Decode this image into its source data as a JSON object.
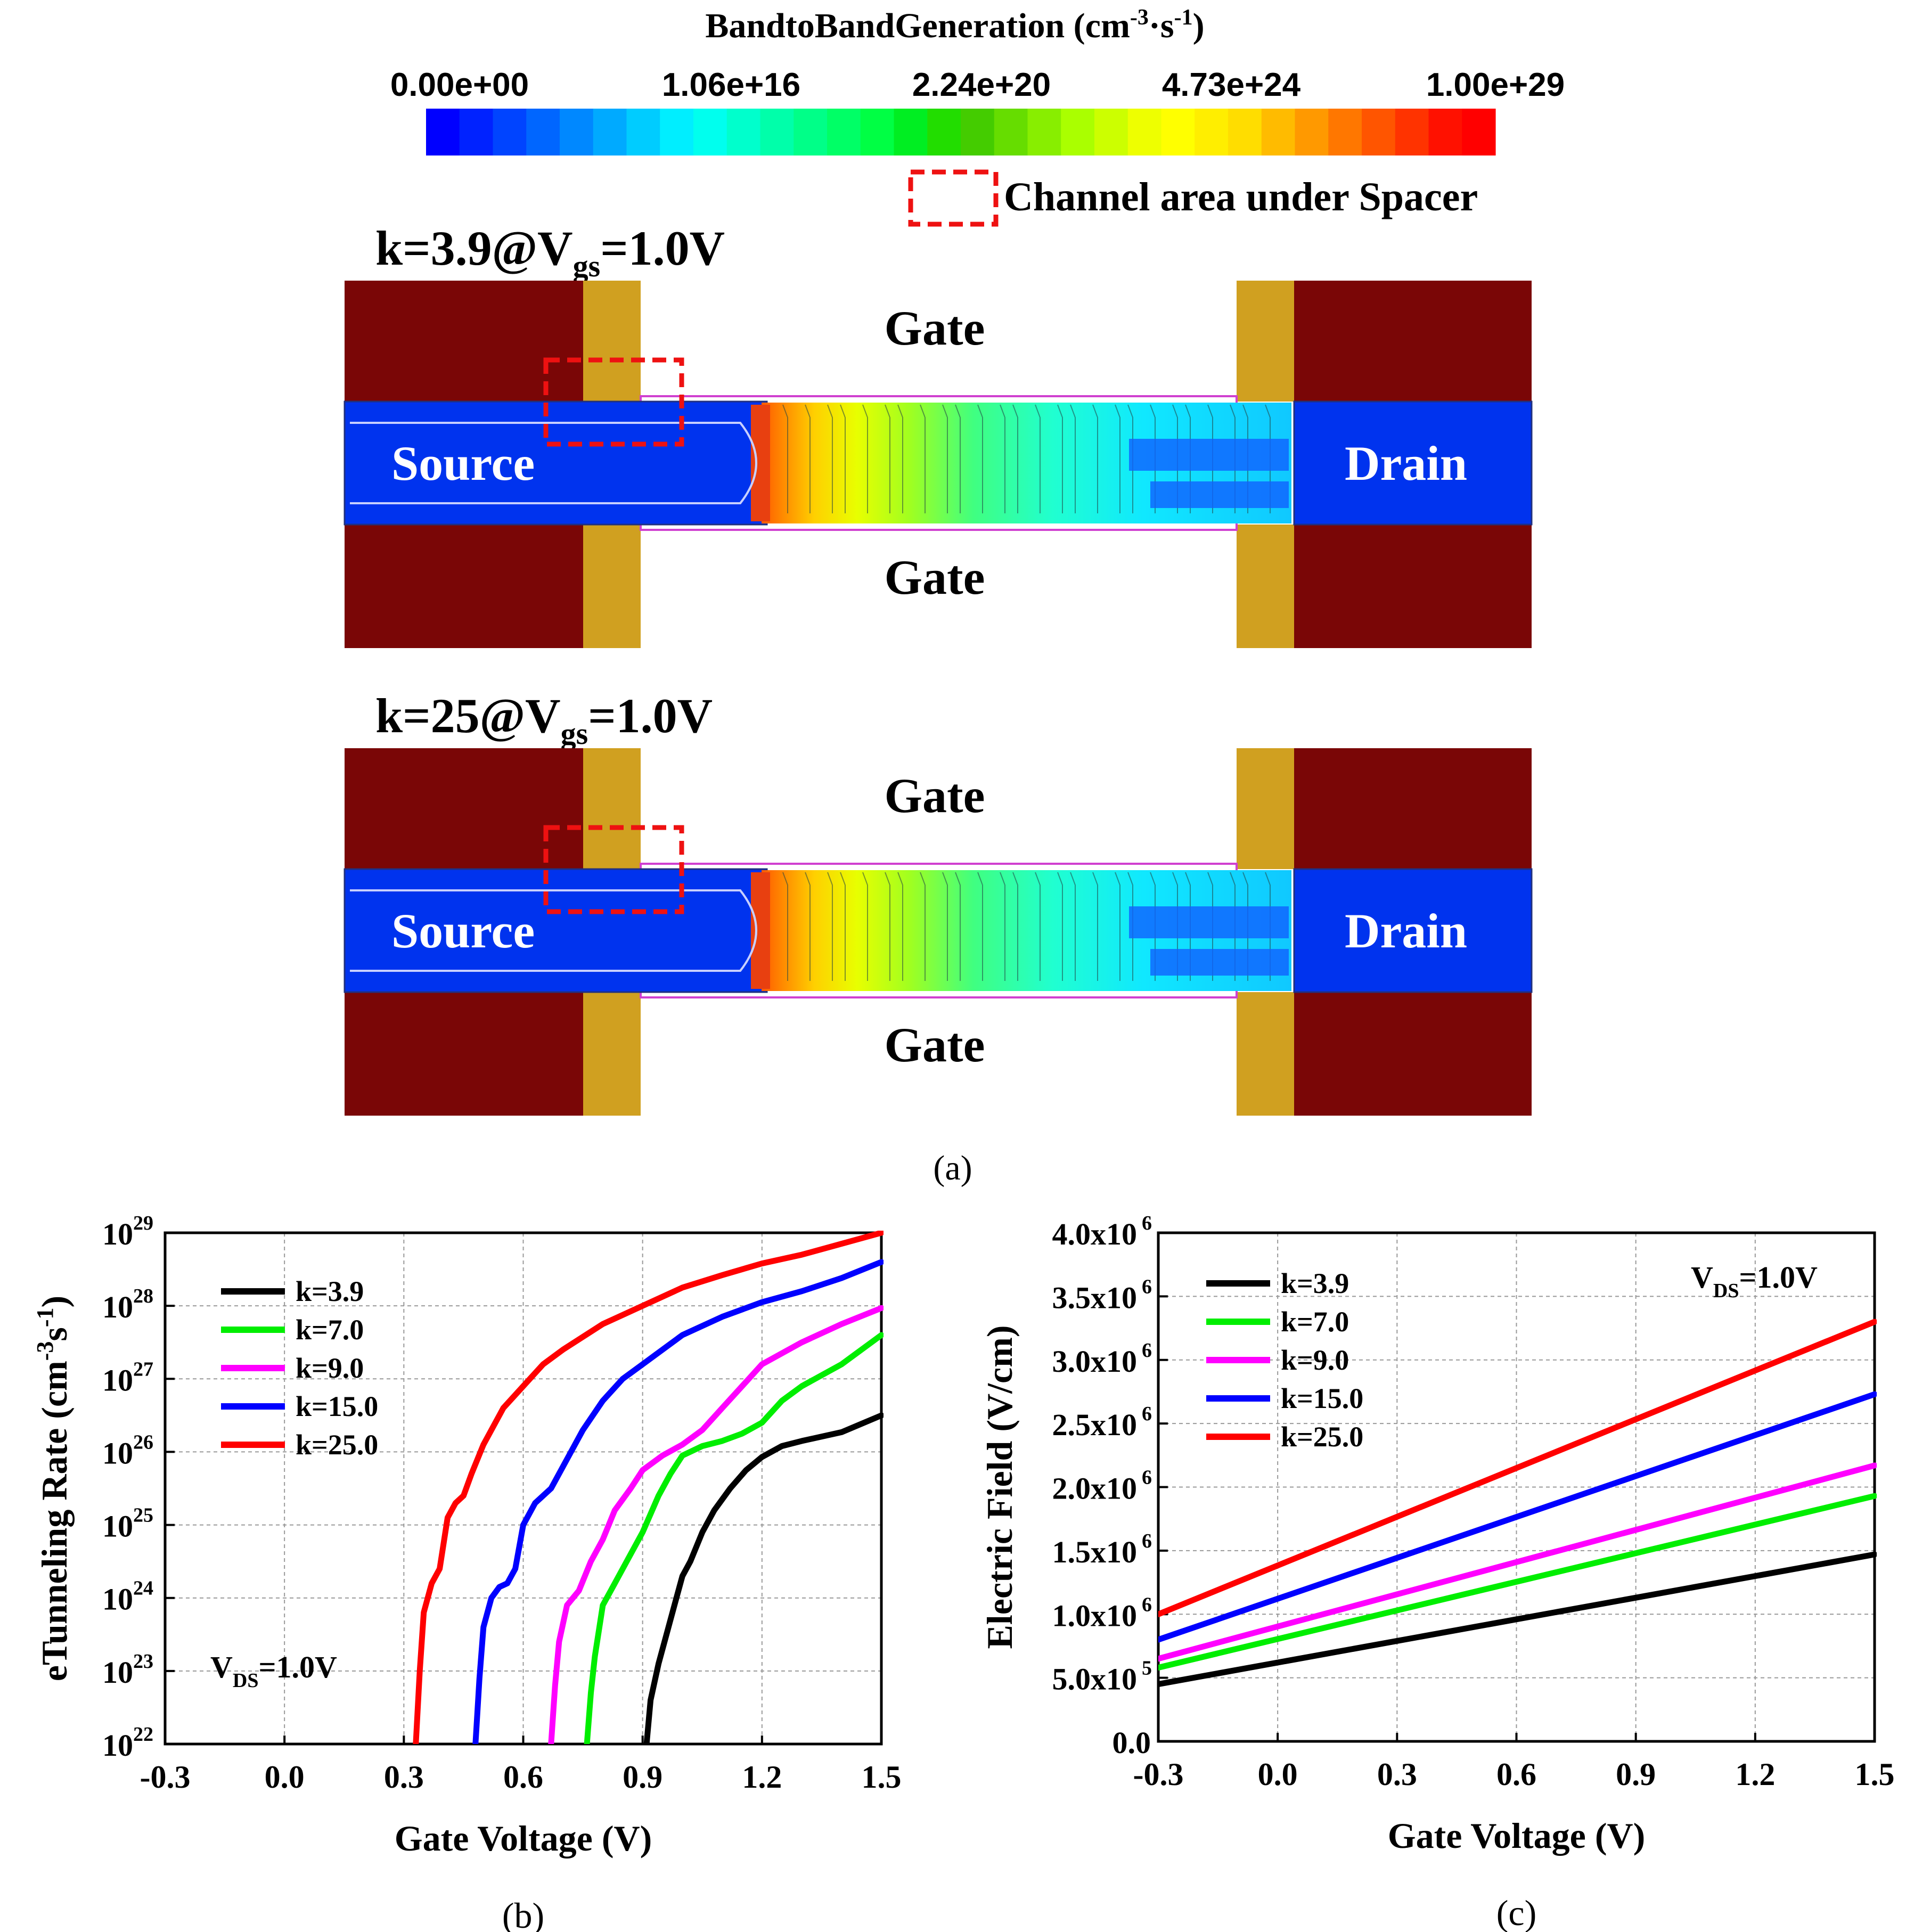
{
  "colorbar": {
    "title": "BandtoBandGeneration (cm",
    "title_exp": "-3",
    "title_mid": "·s",
    "title_exp2": "-1",
    "title_end": ")",
    "ticks": [
      "0.00e+00",
      "1.06e+16",
      "2.24e+20",
      "4.73e+24",
      "1.00e+29"
    ],
    "colors": [
      "#0000ff",
      "#0022ff",
      "#0044ff",
      "#0066ff",
      "#0088ff",
      "#00aaff",
      "#00ccff",
      "#00eeff",
      "#00ffee",
      "#00ffcc",
      "#00ffaa",
      "#00ff88",
      "#00ff66",
      "#00ff44",
      "#00ee22",
      "#22dd00",
      "#44cc00",
      "#66dd00",
      "#88ee00",
      "#aaff00",
      "#ccff00",
      "#eeff00",
      "#ffff00",
      "#ffee00",
      "#ffdd00",
      "#ffbb00",
      "#ff9900",
      "#ff7700",
      "#ff5500",
      "#ff3300",
      "#ff1100",
      "#ff0000"
    ]
  },
  "legend_box_label": "Channel area under Spacer",
  "panel_a": {
    "label": "(a)",
    "devices": [
      {
        "title_pre": "k=3.9@V",
        "title_sub": "gs",
        "title_post": "=1.0V",
        "gate_top": "Gate",
        "gate_bottom": "Gate",
        "source": "Source",
        "drain": "Drain"
      },
      {
        "title_pre": "k=25@V",
        "title_sub": "gs",
        "title_post": "=1.0V",
        "gate_top": "Gate",
        "gate_bottom": "Gate",
        "source": "Source",
        "drain": "Drain"
      }
    ],
    "colors": {
      "gate": "#7a0606",
      "spacer": "#d0a020",
      "source_drain": "#0033ee"
    }
  },
  "chart_data": [
    {
      "id": "b",
      "label": "(b)",
      "type": "line",
      "xlabel": "Gate Voltage (V)",
      "ylabel": "eTunneling Rate (cm",
      "ylabel_exp": "-3",
      "ylabel_mid": "s",
      "ylabel_exp2": "-1",
      "ylabel_end": ")",
      "yscale": "log",
      "xlim": [
        -0.3,
        1.5
      ],
      "ylim_log10": [
        22,
        29
      ],
      "xticks": [
        "-0.3",
        "0.0",
        "0.3",
        "0.6",
        "0.9",
        "1.2",
        "1.5"
      ],
      "yticks_exp": [
        "22",
        "23",
        "24",
        "25",
        "26",
        "27",
        "28",
        "29"
      ],
      "ytick_base": "10",
      "annotation_pre": "V",
      "annotation_sub": "DS",
      "annotation_post": "=1.0V",
      "series": [
        {
          "name": "k=3.9",
          "color": "#000000",
          "x": [
            0.91,
            0.92,
            0.94,
            0.96,
            0.98,
            1.0,
            1.02,
            1.05,
            1.08,
            1.12,
            1.16,
            1.2,
            1.25,
            1.3,
            1.4,
            1.5
          ],
          "log10_y": [
            22.0,
            22.6,
            23.1,
            23.5,
            23.9,
            24.3,
            24.5,
            24.9,
            25.2,
            25.5,
            25.75,
            25.93,
            26.08,
            26.15,
            26.27,
            26.5
          ]
        },
        {
          "name": "k=7.0",
          "color": "#00ee00",
          "x": [
            0.76,
            0.77,
            0.78,
            0.8,
            0.83,
            0.86,
            0.9,
            0.94,
            0.97,
            1.0,
            1.05,
            1.1,
            1.15,
            1.2,
            1.25,
            1.3,
            1.4,
            1.5
          ],
          "log10_y": [
            22.0,
            22.7,
            23.2,
            23.9,
            24.2,
            24.5,
            24.9,
            25.4,
            25.7,
            25.95,
            26.08,
            26.15,
            26.25,
            26.4,
            26.7,
            26.9,
            27.2,
            27.6
          ]
        },
        {
          "name": "k=9.0",
          "color": "#ff00ff",
          "x": [
            0.67,
            0.68,
            0.69,
            0.71,
            0.74,
            0.77,
            0.8,
            0.83,
            0.87,
            0.9,
            0.95,
            1.0,
            1.05,
            1.1,
            1.15,
            1.2,
            1.3,
            1.4,
            1.5
          ],
          "log10_y": [
            22.0,
            22.8,
            23.4,
            23.9,
            24.1,
            24.5,
            24.8,
            25.2,
            25.5,
            25.75,
            25.95,
            26.1,
            26.3,
            26.6,
            26.9,
            27.2,
            27.5,
            27.75,
            27.97
          ]
        },
        {
          "name": "k=15.0",
          "color": "#0000ff",
          "x": [
            0.48,
            0.49,
            0.5,
            0.52,
            0.54,
            0.56,
            0.58,
            0.6,
            0.63,
            0.67,
            0.7,
            0.75,
            0.8,
            0.85,
            0.9,
            1.0,
            1.1,
            1.2,
            1.3,
            1.4,
            1.5
          ],
          "log10_y": [
            22.0,
            22.9,
            23.6,
            24.0,
            24.15,
            24.2,
            24.4,
            25.0,
            25.3,
            25.5,
            25.8,
            26.3,
            26.7,
            27.0,
            27.2,
            27.6,
            27.85,
            28.05,
            28.2,
            28.38,
            28.6
          ]
        },
        {
          "name": "k=25.0",
          "color": "#ff0000",
          "x": [
            0.33,
            0.34,
            0.35,
            0.37,
            0.39,
            0.41,
            0.43,
            0.45,
            0.47,
            0.5,
            0.55,
            0.6,
            0.65,
            0.7,
            0.8,
            0.9,
            1.0,
            1.1,
            1.2,
            1.3,
            1.4,
            1.5
          ],
          "log10_y": [
            22.0,
            23.0,
            23.8,
            24.2,
            24.4,
            25.1,
            25.3,
            25.4,
            25.7,
            26.1,
            26.6,
            26.9,
            27.2,
            27.4,
            27.75,
            28.0,
            28.25,
            28.42,
            28.58,
            28.7,
            28.85,
            29.0
          ]
        }
      ]
    },
    {
      "id": "c",
      "label": "(c)",
      "type": "line",
      "xlabel": "Gate Voltage (V)",
      "ylabel": "Electric Field (V/cm)",
      "xlim": [
        -0.3,
        1.5
      ],
      "ylim": [
        0,
        4000000
      ],
      "xticks": [
        "-0.3",
        "0.0",
        "0.3",
        "0.6",
        "0.9",
        "1.2",
        "1.5"
      ],
      "yticks": [
        {
          "mant": "0.0",
          "exp": ""
        },
        {
          "mant": "5.0x10",
          "exp": "5"
        },
        {
          "mant": "1.0x10",
          "exp": "6"
        },
        {
          "mant": "1.5x10",
          "exp": "6"
        },
        {
          "mant": "2.0x10",
          "exp": "6"
        },
        {
          "mant": "2.5x10",
          "exp": "6"
        },
        {
          "mant": "3.0x10",
          "exp": "6"
        },
        {
          "mant": "3.5x10",
          "exp": "6"
        },
        {
          "mant": "4.0x10",
          "exp": "6"
        }
      ],
      "annotation_pre": "V",
      "annotation_sub": "DS",
      "annotation_post": "=1.0V",
      "series": [
        {
          "name": "k=3.9",
          "color": "#000000",
          "x": [
            -0.3,
            1.5
          ],
          "y": [
            450000,
            1470000
          ]
        },
        {
          "name": "k=7.0",
          "color": "#00ee00",
          "x": [
            -0.3,
            1.5
          ],
          "y": [
            580000,
            1930000
          ]
        },
        {
          "name": "k=9.0",
          "color": "#ff00ff",
          "x": [
            -0.3,
            1.5
          ],
          "y": [
            650000,
            2170000
          ]
        },
        {
          "name": "k=15.0",
          "color": "#0000ff",
          "x": [
            -0.3,
            1.5
          ],
          "y": [
            800000,
            2730000
          ]
        },
        {
          "name": "k=25.0",
          "color": "#ff0000",
          "x": [
            -0.3,
            1.5
          ],
          "y": [
            1000000,
            3300000
          ]
        }
      ]
    }
  ]
}
